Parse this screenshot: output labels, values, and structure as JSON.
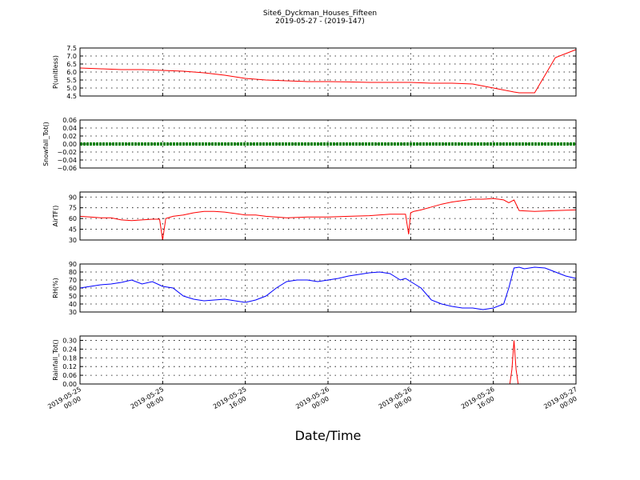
{
  "title": "Site6_Dyckman_Houses_Fifteen",
  "subtitle": "2019-05-27 - (2019-147)",
  "xlabel": "Date/Time",
  "x_ticks": [
    "2019-05-25\n00:00",
    "2019-05-25\n08:00",
    "2019-05-25\n16:00",
    "2019-05-26\n00:00",
    "2019-05-26\n08:00",
    "2019-05-26\n16:00",
    "2019-05-27\n00:00"
  ],
  "colors": {
    "p": "#ff0000",
    "snow": "#008000",
    "airtf": "#ff0000",
    "rh": "#0000ff",
    "rain": "#ff0000"
  },
  "chart_data": [
    {
      "type": "line",
      "ylabel": "P(unitless)",
      "ylim": [
        4.5,
        7.5
      ],
      "yticks": [
        4.5,
        5.0,
        5.5,
        6.0,
        6.5,
        7.0,
        7.5
      ],
      "ytick_labels": [
        "4.5",
        "5.0",
        "5.5",
        "6.0",
        "6.5",
        "7.0",
        "7.5"
      ],
      "grid": true,
      "series": [
        {
          "color": "red",
          "x": [
            0,
            2,
            4,
            6,
            8,
            10,
            12,
            14,
            16,
            18,
            20,
            22,
            24,
            26,
            28,
            30,
            32,
            34,
            36,
            38,
            40,
            42,
            42.5,
            43,
            44,
            46,
            48
          ],
          "y": [
            6.25,
            6.2,
            6.15,
            6.15,
            6.1,
            6.05,
            5.95,
            5.8,
            5.6,
            5.5,
            5.45,
            5.4,
            5.4,
            5.38,
            5.35,
            5.35,
            5.35,
            5.3,
            5.3,
            5.25,
            5.0,
            4.75,
            4.7,
            4.7,
            4.7,
            6.9,
            7.4
          ]
        }
      ]
    },
    {
      "type": "line",
      "ylabel": "Snowfall_Tot()",
      "ylim": [
        -0.06,
        0.06
      ],
      "yticks": [
        -0.06,
        -0.04,
        -0.02,
        0.0,
        0.02,
        0.04,
        0.06
      ],
      "ytick_labels": [
        "−0.06",
        "−0.04",
        "−0.02",
        "0.00",
        "0.02",
        "0.04",
        "0.06"
      ],
      "grid": true,
      "series": [
        {
          "color": "green",
          "x": [
            0,
            48
          ],
          "y": [
            0,
            0
          ]
        }
      ]
    },
    {
      "type": "line",
      "ylabel": "AirTF()",
      "ylim": [
        30,
        97
      ],
      "yticks": [
        30,
        45,
        60,
        75,
        90
      ],
      "ytick_labels": [
        "30",
        "45",
        "60",
        "75",
        "90"
      ],
      "grid": true,
      "series": [
        {
          "color": "red",
          "x": [
            0,
            1,
            2,
            3,
            4,
            5,
            6,
            7,
            7.7,
            8,
            8.3,
            9,
            10,
            11,
            12,
            13,
            14,
            15,
            16,
            17,
            18,
            20,
            22,
            24,
            26,
            28,
            30,
            31.5,
            31.8,
            32,
            32.3,
            33,
            34,
            35,
            36,
            37,
            38,
            39,
            40,
            41,
            41.5,
            42,
            42.5,
            44,
            46,
            48
          ],
          "y": [
            63,
            62,
            61,
            61,
            58,
            57,
            58,
            59,
            59,
            30,
            60,
            63,
            65,
            68,
            70,
            70,
            69,
            67,
            65,
            65,
            63,
            61,
            62,
            62,
            63,
            64,
            66,
            66,
            38,
            68,
            70,
            72,
            76,
            80,
            83,
            85,
            87,
            87,
            88,
            86,
            82,
            86,
            71,
            70,
            71,
            72
          ]
        }
      ]
    },
    {
      "type": "line",
      "ylabel": "RH(%)",
      "ylim": [
        30,
        90
      ],
      "yticks": [
        30,
        40,
        50,
        60,
        70,
        80,
        90
      ],
      "ytick_labels": [
        "30",
        "40",
        "50",
        "60",
        "70",
        "80",
        "90"
      ],
      "grid": true,
      "series": [
        {
          "color": "blue",
          "x": [
            0,
            1,
            2,
            3,
            4,
            5,
            6,
            7,
            8,
            9,
            10,
            11,
            12,
            13,
            14,
            15,
            16,
            17,
            18,
            19,
            20,
            21,
            22,
            23,
            24,
            25,
            26,
            27,
            28,
            29,
            30,
            31,
            31.5,
            32,
            33,
            34,
            35,
            36,
            37,
            38,
            39,
            40,
            41,
            41.5,
            42,
            42.5,
            43,
            44,
            45,
            46,
            47,
            48
          ],
          "y": [
            60,
            62,
            64,
            65,
            67,
            70,
            65,
            68,
            62,
            60,
            50,
            46,
            44,
            45,
            46,
            44,
            42,
            45,
            50,
            60,
            68,
            70,
            70,
            68,
            70,
            72,
            75,
            77,
            79,
            80,
            78,
            70,
            72,
            68,
            60,
            45,
            40,
            37,
            35,
            35,
            33,
            35,
            40,
            60,
            85,
            86,
            84,
            86,
            85,
            80,
            75,
            72
          ]
        }
      ]
    },
    {
      "type": "line",
      "ylabel": "Rainfall_Tot()",
      "ylim": [
        0,
        0.33
      ],
      "yticks": [
        0.0,
        0.06,
        0.12,
        0.18,
        0.24,
        0.3
      ],
      "ytick_labels": [
        "0.00",
        "0.06",
        "0.12",
        "0.18",
        "0.24",
        "0.30"
      ],
      "grid": true,
      "series": [
        {
          "color": "red",
          "x": [
            0,
            41.6,
            41.8,
            42,
            42.2,
            42.4,
            48
          ],
          "y": [
            0,
            0,
            0.1,
            0.3,
            0.1,
            0,
            0
          ]
        }
      ]
    }
  ]
}
